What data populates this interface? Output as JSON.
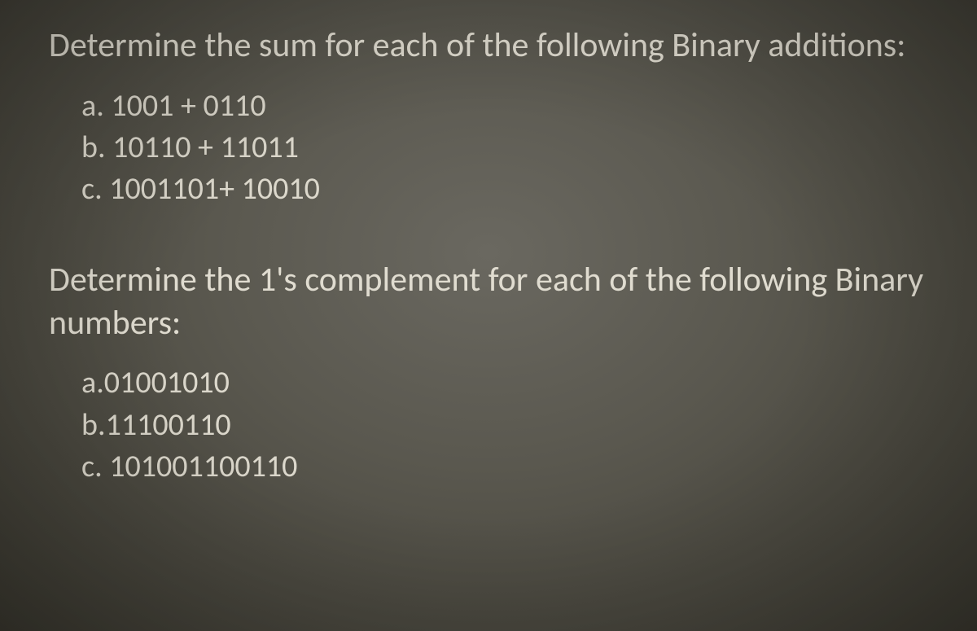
{
  "question1": {
    "title": "Determine the sum for each of the following Binary additions:",
    "items": [
      {
        "label": "a. ",
        "text": "1001 + 0110"
      },
      {
        "label": "b. ",
        "text": "10110 + 11011"
      },
      {
        "label": "c. ",
        "text": "1001101+ 10010"
      }
    ]
  },
  "question2": {
    "title": "Determine the 1's complement for each of the following Binary numbers:",
    "items": [
      {
        "label": "a.",
        "text": "01001010"
      },
      {
        "label": "b.",
        "text": "11100110"
      },
      {
        "label": "c. ",
        "text": "101001100110"
      }
    ]
  },
  "style": {
    "text_color": "#dcd8cc",
    "background_center": "#6a6860",
    "background_edge": "#3a382f",
    "title_fontsize": 42,
    "item_fontsize": 38,
    "font_family": "Calibri"
  }
}
